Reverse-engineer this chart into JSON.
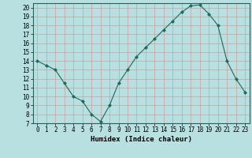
{
  "x": [
    0,
    1,
    2,
    3,
    4,
    5,
    6,
    7,
    8,
    9,
    10,
    11,
    12,
    13,
    14,
    15,
    16,
    17,
    18,
    19,
    20,
    21,
    22,
    23
  ],
  "y": [
    14,
    13.5,
    13,
    11.5,
    10,
    9.5,
    8,
    7.2,
    9,
    11.5,
    13,
    14.5,
    15.5,
    16.5,
    17.5,
    18.5,
    19.5,
    20.2,
    20.3,
    19.3,
    18,
    14,
    12,
    10.5
  ],
  "line_color": "#1a6b5a",
  "marker": "D",
  "marker_size": 2,
  "bg_color": "#b8e0e0",
  "grid_color": "#9bbcbc",
  "grid_color2": "#c8a0a0",
  "xlabel": "Humidex (Indice chaleur)",
  "ylim": [
    7,
    20.5
  ],
  "xlim": [
    -0.5,
    23.5
  ],
  "yticks": [
    7,
    8,
    9,
    10,
    11,
    12,
    13,
    14,
    15,
    16,
    17,
    18,
    19,
    20
  ],
  "xticks": [
    0,
    1,
    2,
    3,
    4,
    5,
    6,
    7,
    8,
    9,
    10,
    11,
    12,
    13,
    14,
    15,
    16,
    17,
    18,
    19,
    20,
    21,
    22,
    23
  ],
  "xlabel_fontsize": 6.5,
  "tick_fontsize": 5.5
}
